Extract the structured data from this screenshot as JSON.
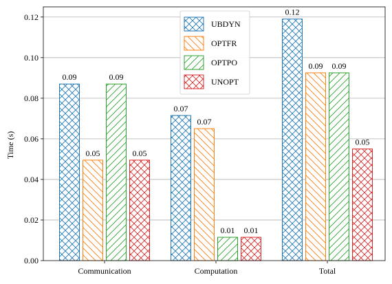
{
  "chart_data": {
    "type": "bar",
    "title": "",
    "xlabel": "",
    "ylabel": "Time (s)",
    "ylim": [
      0,
      0.125
    ],
    "yticks": [
      0.0,
      0.02,
      0.04,
      0.06,
      0.08,
      0.1,
      0.12
    ],
    "ytick_labels": [
      "0.00",
      "0.02",
      "0.04",
      "0.06",
      "0.08",
      "0.10",
      "0.12"
    ],
    "categories": [
      "Communication",
      "Computation",
      "Total"
    ],
    "grid": "horizontal",
    "legend_position": "top-center",
    "series": [
      {
        "name": "UBDYN",
        "color": "#1f77b4",
        "hatch": "crosshatch",
        "values": [
          0.087,
          0.0715,
          0.119
        ],
        "labels": [
          "0.09",
          "0.07",
          "0.12"
        ]
      },
      {
        "name": "OPTFR",
        "color": "#ff7f0e",
        "hatch": "backslash",
        "values": [
          0.0495,
          0.065,
          0.0925
        ],
        "labels": [
          "0.05",
          "0.07",
          "0.09"
        ]
      },
      {
        "name": "OPTPO",
        "color": "#2ca02c",
        "hatch": "slash",
        "values": [
          0.087,
          0.0115,
          0.0925
        ],
        "labels": [
          "0.09",
          "0.01",
          "0.09"
        ]
      },
      {
        "name": "UNOPT",
        "color": "#d62728",
        "hatch": "crosshatch",
        "values": [
          0.0495,
          0.0115,
          0.055
        ],
        "labels": [
          "0.05",
          "0.01",
          "0.05"
        ]
      }
    ]
  }
}
